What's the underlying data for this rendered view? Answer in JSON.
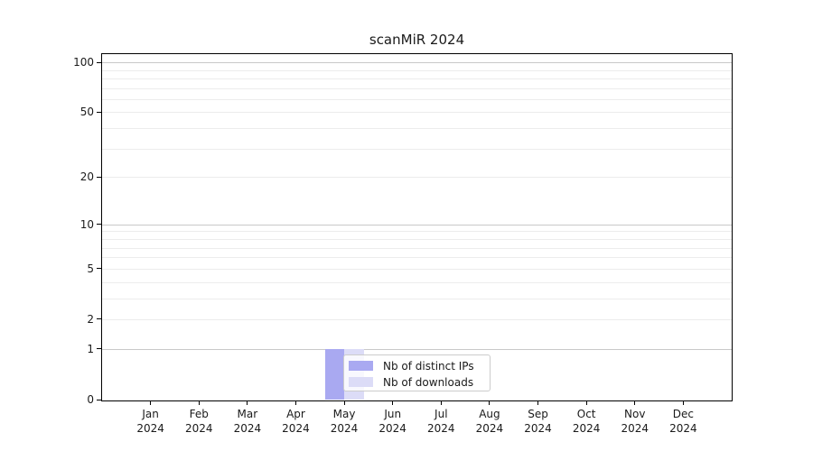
{
  "chart_data": {
    "type": "bar",
    "title": "scanMiR 2024",
    "x_tick_months": [
      "Jan",
      "Feb",
      "Mar",
      "Apr",
      "May",
      "Jun",
      "Jul",
      "Aug",
      "Sep",
      "Oct",
      "Nov",
      "Dec"
    ],
    "x_tick_year": "2024",
    "series": [
      {
        "name": "Nb of distinct IPs",
        "color": "#a9a9f1",
        "values": [
          0,
          0,
          0,
          0,
          1,
          0,
          0,
          0,
          0,
          0,
          0,
          0
        ]
      },
      {
        "name": "Nb of downloads",
        "color": "#dcdcf7",
        "values": [
          0,
          0,
          0,
          0,
          1,
          0,
          0,
          0,
          0,
          0,
          0,
          0
        ]
      }
    ],
    "yscale": "log1p",
    "ylim": [
      0,
      112
    ],
    "xlim": [
      -1,
      12
    ],
    "y_tick_values": [
      0,
      1,
      2,
      5,
      10,
      20,
      50,
      100
    ],
    "y_tick_labels": [
      "0",
      "1",
      "2",
      "5",
      "10",
      "20",
      "50",
      "100"
    ],
    "y_major_gridlines": [
      1,
      10,
      100
    ],
    "y_minor_gridlines": [
      2,
      3,
      4,
      5,
      6,
      7,
      8,
      9,
      20,
      30,
      40,
      50,
      60,
      70,
      80,
      90
    ],
    "grid": true,
    "legend_position": "inside-bottom, left of center",
    "colors": {
      "bar_distinct_ips": "#a9a9f1",
      "bar_downloads": "#dcdcf7",
      "major_grid": "#c9c9c9",
      "minor_grid": "#ececec",
      "spine": "#000000",
      "text": "#1a1a1a",
      "legend_border": "#cccccc"
    }
  }
}
